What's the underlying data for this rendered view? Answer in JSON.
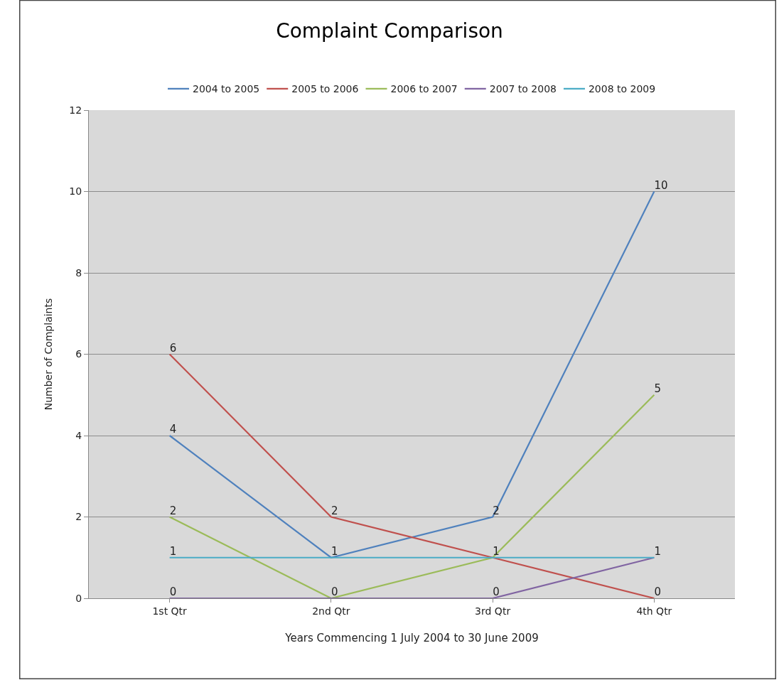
{
  "chart_data": {
    "type": "line",
    "title": "Complaint Comparison",
    "xlabel": "Years Commencing 1 July 2004 to 30 June 2009",
    "ylabel": "Number of Complaints",
    "categories": [
      "1st Qtr",
      "2nd Qtr",
      "3rd Qtr",
      "4th Qtr"
    ],
    "series": [
      {
        "name": "2004 to 2005",
        "color": "#4f81bd",
        "values": [
          4,
          1,
          2,
          10
        ],
        "value_labels": [
          "4",
          null,
          "2",
          "10"
        ]
      },
      {
        "name": "2005 to 2006",
        "color": "#c0504d",
        "values": [
          6,
          2,
          1,
          0
        ],
        "value_labels": [
          "6",
          "2",
          null,
          "0"
        ]
      },
      {
        "name": "2006 to 2007",
        "color": "#9bbb59",
        "values": [
          2,
          0,
          1,
          5
        ],
        "value_labels": [
          "2",
          null,
          null,
          "5"
        ]
      },
      {
        "name": "2007 to 2008",
        "color": "#8064a2",
        "values": [
          0,
          0,
          0,
          1
        ],
        "value_labels": [
          "0",
          "0",
          "0",
          null
        ]
      },
      {
        "name": "2008 to 2009",
        "color": "#4bacc6",
        "values": [
          1,
          1,
          1,
          1
        ],
        "value_labels": [
          "1",
          "1",
          "1",
          "1"
        ]
      }
    ],
    "ylim": [
      0,
      12
    ],
    "yticks": [
      0,
      2,
      4,
      6,
      8,
      10,
      12
    ],
    "grid": "y",
    "legend": "top",
    "marker": "none",
    "line_style": "solid"
  }
}
